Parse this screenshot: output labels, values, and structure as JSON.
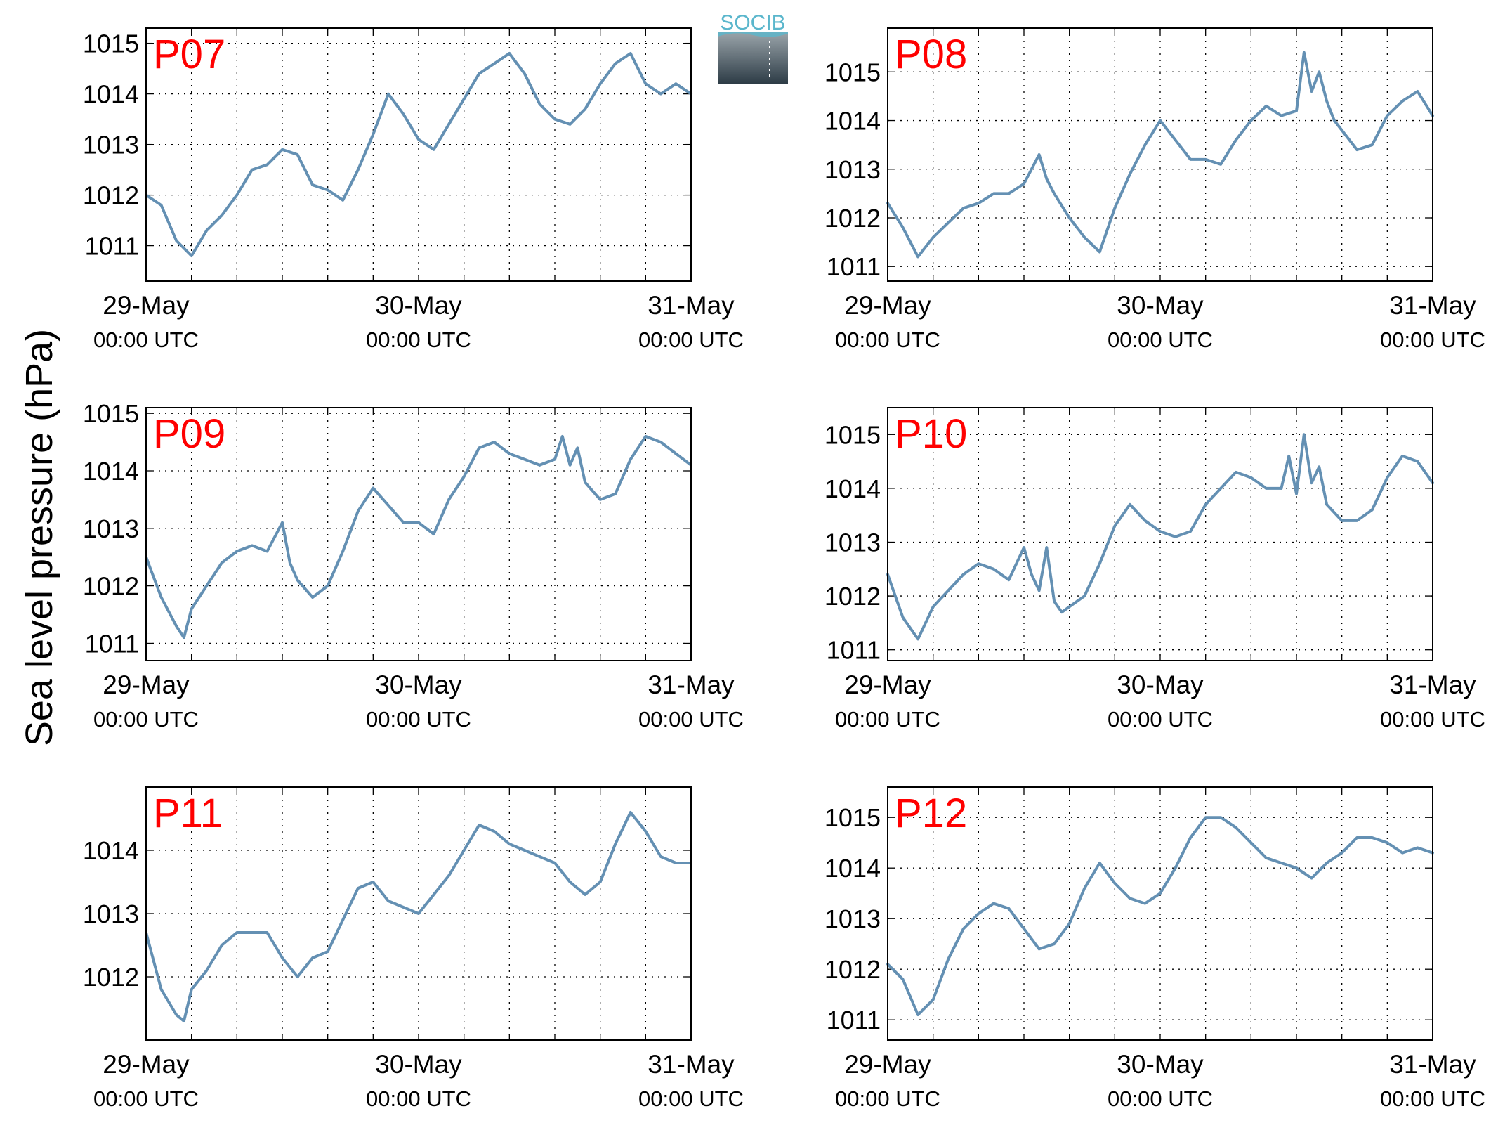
{
  "figure": {
    "ylabel": "Sea level pressure (hPa)",
    "logo_text": "SOCIB",
    "line_color": "#6490b3",
    "panel_label_color": "#ff0000",
    "grid": "dotted"
  },
  "chart_data": [
    {
      "type": "line",
      "title": "P07",
      "ylim": [
        1010.3,
        1015.3
      ],
      "yticks": [
        1011,
        1012,
        1013,
        1014,
        1015
      ],
      "xticks": [
        {
          "date": "29-May",
          "time": "00:00 UTC"
        },
        {
          "date": "30-May",
          "time": "00:00 UTC"
        },
        {
          "date": "31-May",
          "time": "00:00 UTC"
        }
      ],
      "series": [
        {
          "x": [
            0,
            2,
            4,
            6,
            8,
            10,
            12,
            14,
            16,
            18,
            20,
            22,
            24,
            26,
            28,
            30,
            32,
            34,
            36,
            38,
            40,
            42,
            44,
            46,
            48
          ],
          "y": [
            1012.0,
            1011.8,
            1011.1,
            1010.8,
            1011.3,
            1011.6,
            1012.0,
            1012.5,
            1012.6,
            1012.9,
            1012.8,
            1012.2,
            1012.1,
            1011.9,
            1012.5,
            1013.2,
            1014.0,
            1013.6,
            1013.1,
            1012.9,
            1013.4,
            1013.9,
            1014.4,
            1014.6,
            1014.8
          ]
        },
        {
          "x": [
            48,
            50,
            52,
            54,
            56,
            58,
            60,
            62,
            64,
            66,
            68,
            70,
            72
          ],
          "y": [
            1014.8,
            1014.4,
            1013.8,
            1013.5,
            1013.4,
            1013.7,
            1014.2,
            1014.6,
            1014.8,
            1014.2,
            1014.0,
            1014.2,
            1014.0
          ]
        }
      ]
    },
    {
      "type": "line",
      "title": "P08",
      "ylim": [
        1010.7,
        1015.9
      ],
      "yticks": [
        1011,
        1012,
        1013,
        1014,
        1015
      ],
      "xticks": [
        {
          "date": "29-May",
          "time": "00:00 UTC"
        },
        {
          "date": "30-May",
          "time": "00:00 UTC"
        },
        {
          "date": "31-May",
          "time": "00:00 UTC"
        }
      ],
      "series": [
        {
          "x": [
            0,
            2,
            4,
            6,
            8,
            10,
            12,
            14,
            16,
            18,
            20,
            21,
            22,
            24,
            26,
            28,
            30,
            32,
            34,
            36,
            38,
            40,
            42,
            44,
            46,
            48,
            50,
            52
          ],
          "y": [
            1012.3,
            1011.8,
            1011.2,
            1011.6,
            1011.9,
            1012.2,
            1012.3,
            1012.5,
            1012.5,
            1012.7,
            1013.3,
            1012.8,
            1012.5,
            1012.0,
            1011.6,
            1011.3,
            1012.2,
            1012.9,
            1013.5,
            1014.0,
            1013.6,
            1013.2,
            1013.2,
            1013.1,
            1013.6,
            1014.0,
            1014.3,
            1014.1
          ]
        },
        {
          "x": [
            52,
            54,
            55,
            56,
            57,
            58,
            59,
            60,
            62,
            64,
            66,
            68,
            70,
            72
          ],
          "y": [
            1014.1,
            1014.2,
            1015.4,
            1014.6,
            1015.0,
            1014.4,
            1014.0,
            1013.8,
            1013.4,
            1013.5,
            1014.1,
            1014.4,
            1014.6,
            1014.1
          ]
        }
      ]
    },
    {
      "type": "line",
      "title": "P09",
      "ylim": [
        1010.7,
        1015.1
      ],
      "yticks": [
        1011,
        1012,
        1013,
        1014,
        1015
      ],
      "xticks": [
        {
          "date": "29-May",
          "time": "00:00 UTC"
        },
        {
          "date": "30-May",
          "time": "00:00 UTC"
        },
        {
          "date": "31-May",
          "time": "00:00 UTC"
        }
      ],
      "series": [
        {
          "x": [
            0,
            2,
            4,
            5,
            6,
            8,
            10,
            12,
            14,
            16,
            18,
            19,
            20,
            22,
            24,
            26,
            28,
            30,
            32,
            34,
            36,
            38,
            40,
            42,
            44,
            46,
            48,
            50,
            52
          ],
          "y": [
            1012.5,
            1011.8,
            1011.3,
            1011.1,
            1011.6,
            1012.0,
            1012.4,
            1012.6,
            1012.7,
            1012.6,
            1013.1,
            1012.4,
            1012.1,
            1011.8,
            1012.0,
            1012.6,
            1013.3,
            1013.7,
            1013.4,
            1013.1,
            1013.1,
            1012.9,
            1013.5,
            1013.9,
            1014.4,
            1014.5,
            1014.3,
            1014.2,
            1014.1
          ]
        },
        {
          "x": [
            52,
            54,
            55,
            56,
            57,
            58,
            60,
            62,
            64,
            66,
            68,
            70,
            72
          ],
          "y": [
            1014.1,
            1014.2,
            1014.6,
            1014.1,
            1014.4,
            1013.8,
            1013.5,
            1013.6,
            1014.2,
            1014.6,
            1014.5,
            1014.3,
            1014.1
          ]
        }
      ]
    },
    {
      "type": "line",
      "title": "P10",
      "ylim": [
        1010.8,
        1015.5
      ],
      "yticks": [
        1011,
        1012,
        1013,
        1014,
        1015
      ],
      "xticks": [
        {
          "date": "29-May",
          "time": "00:00 UTC"
        },
        {
          "date": "30-May",
          "time": "00:00 UTC"
        },
        {
          "date": "31-May",
          "time": "00:00 UTC"
        }
      ],
      "series": [
        {
          "x": [
            0,
            2,
            4,
            6,
            8,
            10,
            12,
            14,
            16,
            18,
            19,
            20,
            21,
            22,
            23,
            24,
            26,
            28,
            30,
            32,
            34,
            36,
            38,
            40,
            42,
            44,
            46,
            48,
            50,
            52
          ],
          "y": [
            1012.4,
            1011.6,
            1011.2,
            1011.8,
            1012.1,
            1012.4,
            1012.6,
            1012.5,
            1012.3,
            1012.9,
            1012.4,
            1012.1,
            1012.9,
            1011.9,
            1011.7,
            1011.8,
            1012.0,
            1012.6,
            1013.3,
            1013.7,
            1013.4,
            1013.2,
            1013.1,
            1013.2,
            1013.7,
            1014.0,
            1014.3,
            1014.2,
            1014.0,
            1014.0
          ]
        },
        {
          "x": [
            52,
            53,
            54,
            55,
            56,
            57,
            58,
            60,
            62,
            64,
            66,
            68,
            70,
            72
          ],
          "y": [
            1014.0,
            1014.6,
            1013.9,
            1015.0,
            1014.1,
            1014.4,
            1013.7,
            1013.4,
            1013.4,
            1013.6,
            1014.2,
            1014.6,
            1014.5,
            1014.1
          ]
        }
      ]
    },
    {
      "type": "line",
      "title": "P11",
      "ylim": [
        1011.0,
        1015.0
      ],
      "yticks": [
        1012,
        1013,
        1014
      ],
      "xticks": [
        {
          "date": "29-May",
          "time": "00:00 UTC"
        },
        {
          "date": "30-May",
          "time": "00:00 UTC"
        },
        {
          "date": "31-May",
          "time": "00:00 UTC"
        }
      ],
      "series": [
        {
          "x": [
            0,
            2,
            4,
            5,
            6,
            8,
            10,
            12,
            14,
            16,
            18,
            20,
            22,
            24,
            26,
            28,
            30,
            32,
            34,
            36,
            38,
            40,
            42,
            44,
            46,
            48,
            50,
            52
          ],
          "y": [
            1012.7,
            1011.8,
            1011.4,
            1011.3,
            1011.8,
            1012.1,
            1012.5,
            1012.7,
            1012.7,
            1012.7,
            1012.3,
            1012.0,
            1012.3,
            1012.4,
            1012.9,
            1013.4,
            1013.5,
            1013.2,
            1013.1,
            1013.0,
            1013.3,
            1013.6,
            1014.0,
            1014.4,
            1014.3,
            1014.1,
            1014.0,
            1013.9
          ]
        },
        {
          "x": [
            52,
            54,
            56,
            58,
            60,
            62,
            64,
            66,
            68,
            70,
            72
          ],
          "y": [
            1013.9,
            1013.8,
            1013.5,
            1013.3,
            1013.5,
            1014.1,
            1014.6,
            1014.3,
            1013.9,
            1013.8,
            1013.8
          ]
        }
      ]
    },
    {
      "type": "line",
      "title": "P12",
      "ylim": [
        1010.6,
        1015.6
      ],
      "yticks": [
        1011,
        1012,
        1013,
        1014,
        1015
      ],
      "xticks": [
        {
          "date": "29-May",
          "time": "00:00 UTC"
        },
        {
          "date": "30-May",
          "time": "00:00 UTC"
        },
        {
          "date": "31-May",
          "time": "00:00 UTC"
        }
      ],
      "series": [
        {
          "x": [
            0,
            2,
            4,
            6,
            8,
            10,
            12,
            14,
            16,
            18,
            20,
            22,
            24,
            26,
            28,
            30,
            32,
            34,
            36,
            38,
            40,
            42,
            44,
            46,
            48
          ],
          "y": [
            1012.1,
            1011.8,
            1011.1,
            1011.4,
            1012.2,
            1012.8,
            1013.1,
            1013.3,
            1013.2,
            1012.8,
            1012.4,
            1012.5,
            1012.9,
            1013.6,
            1014.1,
            1013.7,
            1013.4,
            1013.3,
            1013.5,
            1014.0,
            1014.6,
            1015.0,
            1015.0,
            1014.8,
            1014.5
          ]
        },
        {
          "x": [
            48,
            50,
            52,
            54,
            56,
            58,
            60,
            62,
            64,
            66,
            68,
            70,
            72
          ],
          "y": [
            1014.5,
            1014.2,
            1014.1,
            1014.0,
            1013.8,
            1014.1,
            1014.3,
            1014.6,
            1014.6,
            1014.5,
            1014.3,
            1014.4,
            1014.3
          ]
        }
      ]
    }
  ]
}
